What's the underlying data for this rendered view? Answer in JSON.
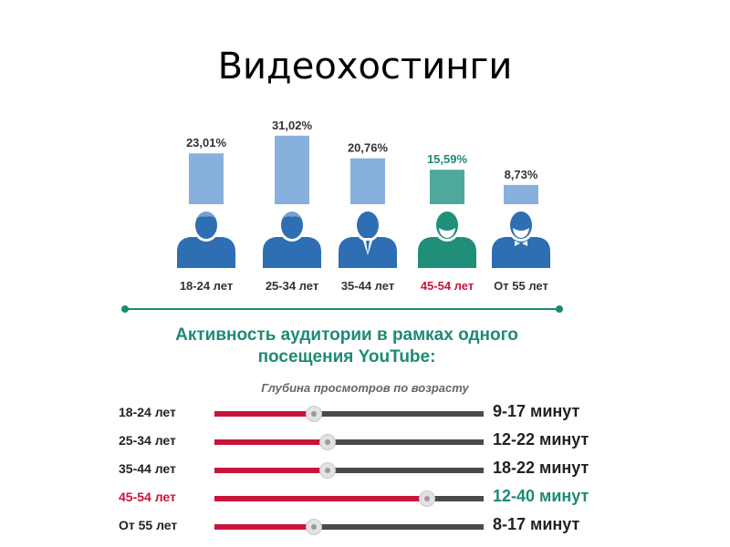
{
  "slide": {
    "title": "Видеохостинги"
  },
  "colors": {
    "bar_default": "#88b0dc",
    "bar_highlight": "#4ea99b",
    "person_default": "#2e6eb3",
    "person_highlight": "#1f8f79",
    "accent_red": "#c8143c",
    "accent_green": "#1e8a74",
    "track": "#4a4a4a"
  },
  "chart_data": [
    {
      "type": "bar",
      "categories": [
        "18-24 лет",
        "25-34 лет",
        "35-44 лет",
        "45-54 лет",
        "От 55 лет"
      ],
      "values": [
        23.01,
        31.02,
        20.76,
        15.59,
        8.73
      ],
      "value_labels": [
        "23,01%",
        "31,02%",
        "20,76%",
        "15,59%",
        "8,73%"
      ],
      "highlight_index": 3,
      "person_icons": [
        "young-man-icon",
        "young-man-icon",
        "man-in-suit-icon",
        "bearded-man-icon",
        "bearded-man-bowtie-icon"
      ],
      "ylim": [
        0,
        33
      ]
    },
    {
      "type": "bar",
      "orientation": "horizontal",
      "title": "Активность аудитории в рамках одного посещения YouTube:",
      "title_lines": [
        "Активность аудитории в рамках одного",
        "посещения YouTube:"
      ],
      "subtitle": "Глубина просмотров по возрасту",
      "rows": [
        {
          "label": "18-24 лет",
          "value": "9-17 минут",
          "min": 9,
          "max": 17,
          "level": 0.37,
          "highlight": false
        },
        {
          "label": "25-34 лет",
          "value": "12-22 минут",
          "min": 12,
          "max": 22,
          "level": 0.42,
          "highlight": false
        },
        {
          "label": "35-44 лет",
          "value": "18-22 минут",
          "min": 18,
          "max": 22,
          "level": 0.42,
          "highlight": false
        },
        {
          "label": "45-54 лет",
          "value": "12-40 минут",
          "min": 12,
          "max": 40,
          "level": 0.79,
          "highlight": true
        },
        {
          "label": "От 55 лет",
          "value": "8-17 минут",
          "min": 8,
          "max": 17,
          "level": 0.37,
          "highlight": false
        }
      ]
    }
  ]
}
